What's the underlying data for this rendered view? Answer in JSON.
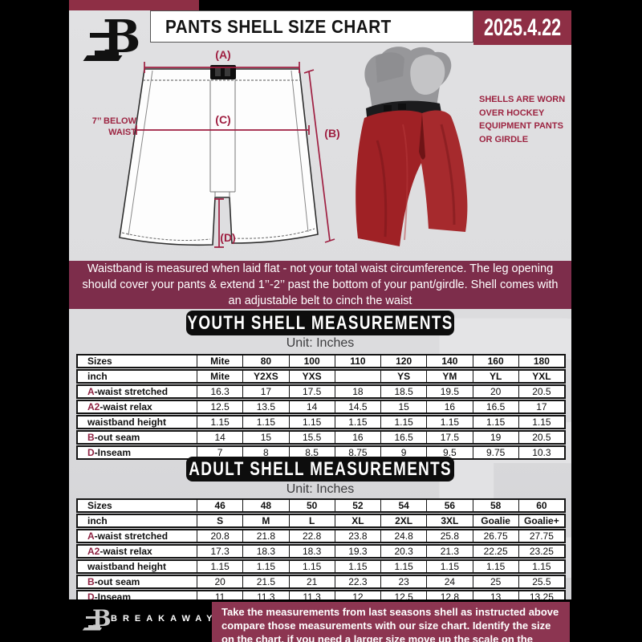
{
  "header": {
    "logo_letter": "B",
    "title": "PANTS SHELL SIZE CHART",
    "date": "2025.4.22"
  },
  "diagram": {
    "label_a": "(A)",
    "label_b": "(B)",
    "label_c": "(C)",
    "label_d": "(D)",
    "waist_note_line1": "7’’ BELOW",
    "waist_note_line2": "WAIST",
    "side_note": "SHELLS ARE WORN OVER HOCKEY EQUIPMENT PANTS OR GIRDLE"
  },
  "info_banner": {
    "text": "Waistband is measured when laid flat - not your total waist circumference. The leg opening should cover your pants & extend 1’’-2’’ past the bottom of your pant/girdle. Shell comes with an adjustable belt to cinch the waist"
  },
  "youth": {
    "title": "YOUTH SHELL MEASUREMENTS",
    "unit": "Unit: Inches",
    "rows": [
      {
        "prefix": "",
        "label": "Sizes",
        "bold": true,
        "values": [
          "Mite",
          "80",
          "100",
          "110",
          "120",
          "140",
          "160",
          "180"
        ]
      },
      {
        "prefix": "",
        "label": "inch",
        "bold": true,
        "values": [
          "Mite",
          "Y2XS",
          "YXS",
          "",
          "YS",
          "YM",
          "YL",
          "YXL"
        ]
      },
      {
        "prefix": "A",
        "label": "-waist stretched",
        "bold": false,
        "values": [
          "16.3",
          "17",
          "17.5",
          "18",
          "18.5",
          "19.5",
          "20",
          "20.5"
        ]
      },
      {
        "prefix": "A2",
        "label": "-waist relax",
        "bold": false,
        "values": [
          "12.5",
          "13.5",
          "14",
          "14.5",
          "15",
          "16",
          "16.5",
          "17"
        ]
      },
      {
        "prefix": "",
        "label": "waistband height",
        "bold": false,
        "values": [
          "1.15",
          "1.15",
          "1.15",
          "1.15",
          "1.15",
          "1.15",
          "1.15",
          "1.15"
        ]
      },
      {
        "prefix": "B",
        "label": "-out seam",
        "bold": false,
        "values": [
          "14",
          "15",
          "15.5",
          "16",
          "16.5",
          "17.5",
          "19",
          "20.5"
        ]
      },
      {
        "prefix": "D",
        "label": "-Inseam",
        "bold": false,
        "values": [
          "7",
          "8",
          "8.5",
          "8.75",
          "9",
          "9.5",
          "9.75",
          "10.3"
        ]
      }
    ]
  },
  "adult": {
    "title": "ADULT SHELL MEASUREMENTS",
    "unit": "Unit: Inches",
    "rows": [
      {
        "prefix": "",
        "label": "Sizes",
        "bold": true,
        "values": [
          "46",
          "48",
          "50",
          "52",
          "54",
          "56",
          "58",
          "60"
        ]
      },
      {
        "prefix": "",
        "label": "inch",
        "bold": true,
        "values": [
          "S",
          "M",
          "L",
          "XL",
          "2XL",
          "3XL",
          "Goalie",
          "Goalie+"
        ]
      },
      {
        "prefix": "A",
        "label": "-waist stretched",
        "bold": false,
        "values": [
          "20.8",
          "21.8",
          "22.8",
          "23.8",
          "24.8",
          "25.8",
          "26.75",
          "27.75"
        ]
      },
      {
        "prefix": "A2",
        "label": "-waist relax",
        "bold": false,
        "values": [
          "17.3",
          "18.3",
          "18.3",
          "19.3",
          "20.3",
          "21.3",
          "22.25",
          "23.25"
        ]
      },
      {
        "prefix": "",
        "label": "waistband height",
        "bold": false,
        "values": [
          "1.15",
          "1.15",
          "1.15",
          "1.15",
          "1.15",
          "1.15",
          "1.15",
          "1.15"
        ]
      },
      {
        "prefix": "B",
        "label": "-out seam",
        "bold": false,
        "values": [
          "20",
          "21.5",
          "21",
          "22.3",
          "23",
          "24",
          "25",
          "25.5"
        ]
      },
      {
        "prefix": "D",
        "label": "-Inseam",
        "bold": false,
        "values": [
          "11",
          "11.3",
          "11.3",
          "12",
          "12.5",
          "12.8",
          "13",
          "13.25"
        ]
      }
    ]
  },
  "footer": {
    "brand": "BREAKAWAY",
    "text": "Take the measurements from last seasons shell as instructed above compare those measurements  with our size chart. Identify the size on the chart, if you need a larger size move up the scale on the chart"
  },
  "colors": {
    "accent_maroon": "#7d2d4b",
    "accent_maroon_bright": "#8e2f45",
    "footer_maroon": "#8c3551",
    "banner_black": "#0d0d0d",
    "diagram_maroon": "#9f1f41",
    "table_prefix_maroon": "#8e2342",
    "pant_red": "#a22427",
    "content_gray": "#dcdcde"
  }
}
